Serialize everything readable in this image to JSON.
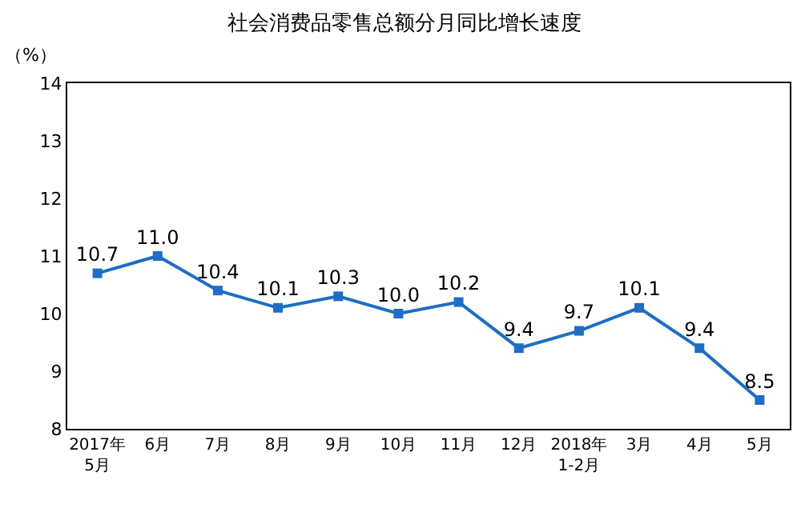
{
  "chart_data": {
    "type": "line",
    "title": "社会消费品零售总额分月同比增长速度",
    "ylabel": "（%）",
    "categories": [
      "2017年\n5月",
      "6月",
      "7月",
      "8月",
      "9月",
      "10月",
      "11月",
      "12月",
      "2018年\n1-2月",
      "3月",
      "4月",
      "5月"
    ],
    "series": [
      {
        "color": "#1f6dc4",
        "values": [
          10.7,
          11.0,
          10.4,
          10.1,
          10.3,
          10.0,
          10.2,
          9.4,
          9.7,
          10.1,
          9.4,
          8.5
        ],
        "value_labels": [
          "10.7",
          "11.0",
          "10.4",
          "10.1",
          "10.3",
          "10.0",
          "10.2",
          "9.4",
          "9.7",
          "10.1",
          "9.4",
          "8.5"
        ]
      }
    ],
    "ylim": [
      8,
      14
    ],
    "yticks": [
      8,
      9,
      10,
      11,
      12,
      13,
      14
    ],
    "grid": false,
    "legend": false,
    "marker": "square",
    "line_style": "solid"
  }
}
